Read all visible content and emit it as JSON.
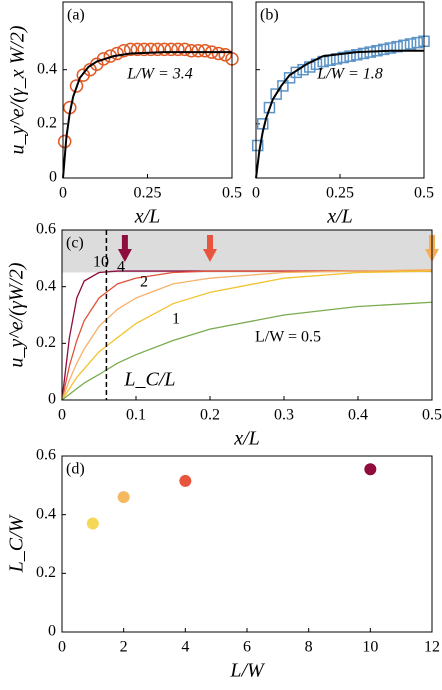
{
  "chart_data": [
    {
      "type": "scatter",
      "panel": "(a)",
      "xlabel": "x/L",
      "ylabel": "u_y^e/(γ_x W/2)",
      "annotation": "L/W = 3.4",
      "annotation_color": "#e05a25",
      "xlim": [
        0,
        0.5
      ],
      "ylim": [
        0,
        0.65
      ],
      "xticks": [
        0,
        0.25,
        0.5
      ],
      "yticks": [
        0,
        0.2,
        0.4
      ],
      "ytick_labels": true,
      "series": [
        {
          "marker": "circle",
          "color": "#e05a25",
          "x": [
            0.005,
            0.02,
            0.04,
            0.06,
            0.08,
            0.1,
            0.12,
            0.14,
            0.16,
            0.18,
            0.2,
            0.22,
            0.24,
            0.26,
            0.28,
            0.3,
            0.32,
            0.34,
            0.36,
            0.38,
            0.4,
            0.42,
            0.44,
            0.46,
            0.48,
            0.5
          ],
          "values": [
            0.135,
            0.26,
            0.34,
            0.38,
            0.4,
            0.42,
            0.44,
            0.45,
            0.46,
            0.47,
            0.475,
            0.475,
            0.475,
            0.475,
            0.475,
            0.475,
            0.475,
            0.475,
            0.475,
            0.47,
            0.47,
            0.47,
            0.465,
            0.46,
            0.455,
            0.44
          ]
        },
        {
          "marker": "line",
          "color": "#000000",
          "x": [
            0,
            0.01,
            0.02,
            0.03,
            0.05,
            0.075,
            0.1,
            0.15,
            0.2,
            0.3,
            0.4,
            0.5
          ],
          "values": [
            0,
            0.15,
            0.24,
            0.3,
            0.37,
            0.41,
            0.43,
            0.45,
            0.46,
            0.465,
            0.465,
            0.465
          ]
        }
      ]
    },
    {
      "type": "scatter",
      "panel": "(b)",
      "xlabel": "x/L",
      "annotation": "L/W = 1.8",
      "annotation_color": "#5b93c7",
      "xlim": [
        0,
        0.5
      ],
      "ylim": [
        0,
        0.65
      ],
      "xticks": [
        0,
        0.25,
        0.5
      ],
      "yticks": [
        0,
        0.2,
        0.4
      ],
      "ytick_labels": false,
      "series": [
        {
          "marker": "square",
          "color": "#5b93c7",
          "x": [
            0.005,
            0.02,
            0.04,
            0.06,
            0.08,
            0.1,
            0.12,
            0.14,
            0.16,
            0.18,
            0.2,
            0.22,
            0.24,
            0.26,
            0.28,
            0.3,
            0.32,
            0.34,
            0.36,
            0.38,
            0.4,
            0.42,
            0.44,
            0.46,
            0.48,
            0.5
          ],
          "values": [
            0.12,
            0.2,
            0.26,
            0.31,
            0.34,
            0.37,
            0.39,
            0.4,
            0.41,
            0.42,
            0.43,
            0.435,
            0.44,
            0.445,
            0.45,
            0.455,
            0.46,
            0.465,
            0.47,
            0.475,
            0.48,
            0.485,
            0.49,
            0.495,
            0.5,
            0.505
          ]
        },
        {
          "marker": "line",
          "color": "#000000",
          "x": [
            0,
            0.01,
            0.02,
            0.03,
            0.05,
            0.075,
            0.1,
            0.15,
            0.2,
            0.3,
            0.4,
            0.5
          ],
          "values": [
            0,
            0.1,
            0.17,
            0.22,
            0.29,
            0.34,
            0.38,
            0.42,
            0.45,
            0.465,
            0.47,
            0.47
          ]
        }
      ]
    },
    {
      "type": "line",
      "panel": "(c)",
      "xlabel": "x/L",
      "ylabel": "u_y^e/(γW/2)",
      "xlim": [
        0,
        0.5
      ],
      "ylim": [
        0,
        0.6
      ],
      "xticks": [
        0,
        0.1,
        0.2,
        0.3,
        0.4,
        0.5
      ],
      "yticks": [
        0,
        0.2,
        0.4,
        0.6
      ],
      "ytick_labels": true,
      "band": [
        0.45,
        0.6
      ],
      "vline": 0.06,
      "vline_label": "L_C/L",
      "arrows": [
        {
          "x": 0.085,
          "color": "#8c0d3e"
        },
        {
          "x": 0.2,
          "color": "#e8553e"
        },
        {
          "x": 0.5,
          "color": "#f6ad55"
        }
      ],
      "series": [
        {
          "marker": "line",
          "label": "10",
          "color": "#8c0d3e",
          "x": [
            0,
            0.01,
            0.02,
            0.03,
            0.05,
            0.075,
            0.1,
            0.15,
            0.2,
            0.3,
            0.4,
            0.5
          ],
          "values": [
            0,
            0.22,
            0.36,
            0.42,
            0.45,
            0.455,
            0.455,
            0.455,
            0.455,
            0.455,
            0.455,
            0.455
          ]
        },
        {
          "marker": "line",
          "label": "4",
          "color": "#e0533a",
          "x": [
            0,
            0.01,
            0.02,
            0.03,
            0.05,
            0.075,
            0.1,
            0.15,
            0.2,
            0.3,
            0.4,
            0.5
          ],
          "values": [
            0,
            0.12,
            0.21,
            0.28,
            0.36,
            0.41,
            0.43,
            0.45,
            0.455,
            0.455,
            0.455,
            0.455
          ]
        },
        {
          "marker": "line",
          "label": "2",
          "color": "#f5b26b",
          "x": [
            0,
            0.01,
            0.02,
            0.03,
            0.05,
            0.075,
            0.1,
            0.15,
            0.2,
            0.3,
            0.4,
            0.5
          ],
          "values": [
            0,
            0.07,
            0.13,
            0.18,
            0.26,
            0.32,
            0.36,
            0.41,
            0.43,
            0.45,
            0.455,
            0.46
          ]
        },
        {
          "marker": "line",
          "label": "1",
          "color": "#f2c32d",
          "x": [
            0,
            0.01,
            0.02,
            0.03,
            0.05,
            0.075,
            0.1,
            0.15,
            0.2,
            0.3,
            0.4,
            0.5
          ],
          "values": [
            0,
            0.04,
            0.08,
            0.11,
            0.17,
            0.22,
            0.27,
            0.34,
            0.38,
            0.43,
            0.45,
            0.455
          ]
        },
        {
          "marker": "line",
          "label": "L/W = 0.5",
          "color": "#7aab4e",
          "x": [
            0,
            0.01,
            0.02,
            0.03,
            0.05,
            0.075,
            0.1,
            0.15,
            0.2,
            0.3,
            0.4,
            0.5
          ],
          "values": [
            0,
            0.02,
            0.04,
            0.06,
            0.09,
            0.13,
            0.16,
            0.21,
            0.25,
            0.3,
            0.33,
            0.345
          ]
        }
      ]
    },
    {
      "type": "scatter",
      "panel": "(d)",
      "xlabel": "L/W",
      "ylabel": "L_C/W",
      "xlim": [
        0,
        12
      ],
      "ylim": [
        0,
        0.6
      ],
      "xticks": [
        0,
        2,
        4,
        6,
        8,
        10,
        12
      ],
      "yticks": [
        0,
        0.2,
        0.4,
        0.6
      ],
      "ytick_labels": true,
      "series": [
        {
          "marker": "dot",
          "colors": [
            "#f7d856",
            "#f4b860",
            "#e8553e",
            "#8f0c3d"
          ],
          "x": [
            1,
            2,
            4,
            10
          ],
          "values": [
            0.37,
            0.46,
            0.515,
            0.555
          ]
        }
      ]
    }
  ]
}
